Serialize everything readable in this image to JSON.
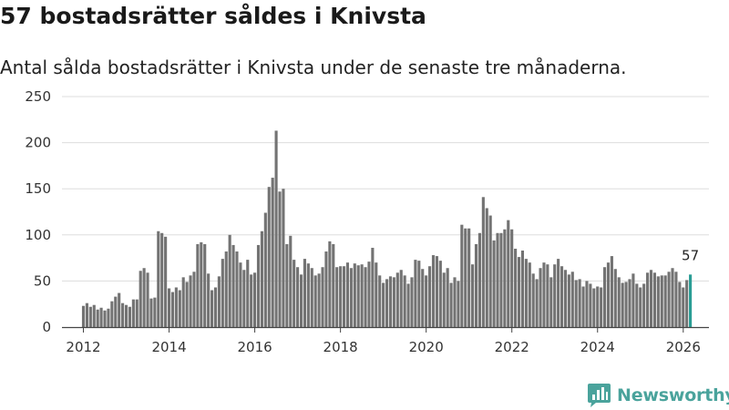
{
  "title": "57 bostadsrätter såldes i Knivsta",
  "subtitle": "Antal sålda bostadsrätter i Knivsta under de senaste tre månaderna.",
  "brand": "Newsworthy",
  "colors": {
    "bar": "#737373",
    "highlight": "#2a9d95",
    "grid": "#dddddd",
    "axis": "#444444",
    "brand": "#4aa39c"
  },
  "chart_data": {
    "type": "bar",
    "title": "57 bostadsrätter såldes i Knivsta",
    "subtitle": "Antal sålda bostadsrätter i Knivsta under de senaste tre månaderna.",
    "xlabel": "",
    "ylabel": "",
    "ylim": [
      0,
      250
    ],
    "yticks": [
      0,
      50,
      100,
      150,
      200,
      250
    ],
    "xlim": [
      2011.5,
      2026.6
    ],
    "xticks": [
      "2012",
      "2014",
      "2016",
      "2018",
      "2020",
      "2022",
      "2024",
      "2026"
    ],
    "x_start": 2012.0,
    "x_step": 0.08333,
    "grid": true,
    "highlight_label": "57",
    "values": [
      23,
      26,
      22,
      24,
      19,
      21,
      18,
      20,
      28,
      33,
      37,
      26,
      24,
      22,
      30,
      30,
      61,
      64,
      59,
      31,
      32,
      104,
      102,
      98,
      42,
      38,
      43,
      40,
      54,
      49,
      56,
      60,
      90,
      92,
      90,
      58,
      40,
      43,
      55,
      74,
      82,
      100,
      89,
      82,
      70,
      62,
      73,
      57,
      59,
      89,
      104,
      124,
      152,
      162,
      213,
      147,
      150,
      90,
      99,
      73,
      65,
      57,
      74,
      69,
      64,
      56,
      58,
      65,
      82,
      93,
      90,
      65,
      66,
      66,
      70,
      64,
      69,
      67,
      68,
      65,
      71,
      86,
      70,
      56,
      48,
      52,
      55,
      54,
      59,
      62,
      56,
      47,
      54,
      73,
      72,
      63,
      56,
      66,
      78,
      77,
      72,
      59,
      64,
      48,
      54,
      50,
      111,
      107,
      107,
      68,
      90,
      102,
      141,
      129,
      121,
      94,
      102,
      102,
      106,
      116,
      106,
      85,
      76,
      83,
      74,
      70,
      58,
      52,
      64,
      70,
      68,
      54,
      68,
      74,
      66,
      62,
      57,
      60,
      51,
      52,
      44,
      50,
      47,
      42,
      44,
      43,
      65,
      70,
      77,
      63,
      54,
      48,
      49,
      52,
      58,
      47,
      43,
      47,
      59,
      62,
      59,
      55,
      56,
      56,
      60,
      64,
      60,
      49,
      43,
      51,
      57
    ]
  }
}
